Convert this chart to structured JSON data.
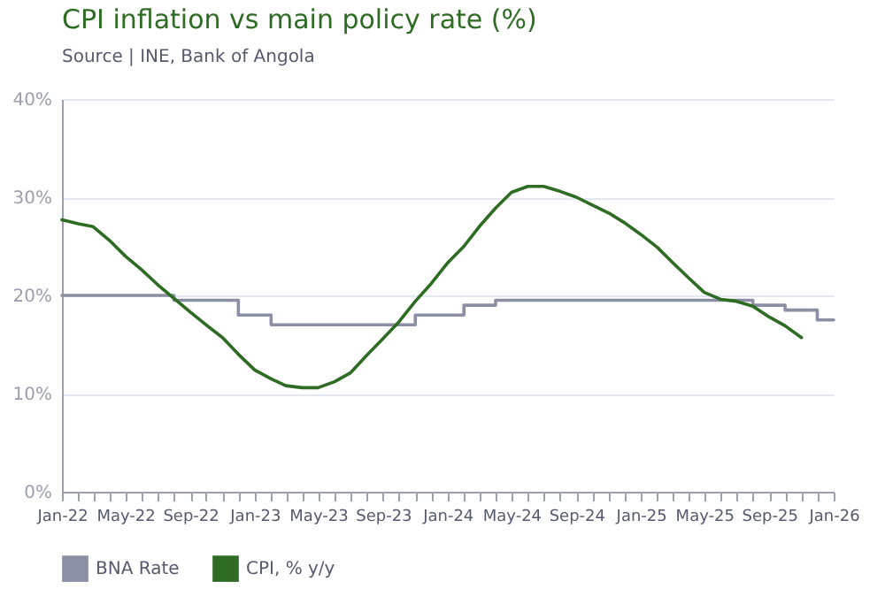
{
  "chart_data": {
    "type": "line",
    "title": "CPI inflation vs main policy rate (%)",
    "subtitle": "Source | INE, Bank of Angola",
    "xlim": [
      "2022-01",
      "2026-01"
    ],
    "xticks": [
      {
        "value": "2022-01",
        "label": "Jan-22"
      },
      {
        "value": "2022-02",
        "label": null
      },
      {
        "value": "2022-03",
        "label": null
      },
      {
        "value": "2022-04",
        "label": null
      },
      {
        "value": "2022-05",
        "label": "May-22"
      },
      {
        "value": "2022-06",
        "label": null
      },
      {
        "value": "2022-07",
        "label": null
      },
      {
        "value": "2022-08",
        "label": null
      },
      {
        "value": "2022-09",
        "label": "Sep-22"
      },
      {
        "value": "2022-10",
        "label": null
      },
      {
        "value": "2022-11",
        "label": null
      },
      {
        "value": "2022-12",
        "label": null
      },
      {
        "value": "2023-01",
        "label": "Jan-23"
      },
      {
        "value": "2023-02",
        "label": null
      },
      {
        "value": "2023-03",
        "label": null
      },
      {
        "value": "2023-04",
        "label": null
      },
      {
        "value": "2023-05",
        "label": "May-23"
      },
      {
        "value": "2023-06",
        "label": null
      },
      {
        "value": "2023-07",
        "label": null
      },
      {
        "value": "2023-08",
        "label": null
      },
      {
        "value": "2023-09",
        "label": "Sep-23"
      },
      {
        "value": "2023-10",
        "label": null
      },
      {
        "value": "2023-11",
        "label": null
      },
      {
        "value": "2023-12",
        "label": null
      },
      {
        "value": "2024-01",
        "label": "Jan-24"
      },
      {
        "value": "2024-02",
        "label": null
      },
      {
        "value": "2024-03",
        "label": null
      },
      {
        "value": "2024-04",
        "label": null
      },
      {
        "value": "2024-05",
        "label": "May-24"
      },
      {
        "value": "2024-06",
        "label": null
      },
      {
        "value": "2024-07",
        "label": null
      },
      {
        "value": "2024-08",
        "label": null
      },
      {
        "value": "2024-09",
        "label": "Sep-24"
      },
      {
        "value": "2024-10",
        "label": null
      },
      {
        "value": "2024-11",
        "label": null
      },
      {
        "value": "2024-12",
        "label": null
      },
      {
        "value": "2025-01",
        "label": "Jan-25"
      },
      {
        "value": "2025-02",
        "label": null
      },
      {
        "value": "2025-03",
        "label": null
      },
      {
        "value": "2025-04",
        "label": null
      },
      {
        "value": "2025-05",
        "label": "May-25"
      },
      {
        "value": "2025-06",
        "label": null
      },
      {
        "value": "2025-07",
        "label": null
      },
      {
        "value": "2025-08",
        "label": null
      },
      {
        "value": "2025-09",
        "label": "Sep-25"
      },
      {
        "value": "2025-10",
        "label": null
      },
      {
        "value": "2025-11",
        "label": null
      },
      {
        "value": "2025-12",
        "label": null
      },
      {
        "value": "2026-01",
        "label": "Jan-26"
      }
    ],
    "ylim": [
      0,
      40
    ],
    "yticks": [
      {
        "value": 0,
        "label": "0%"
      },
      {
        "value": 10,
        "label": "10%"
      },
      {
        "value": 20,
        "label": "20%"
      },
      {
        "value": 30,
        "label": "30%"
      },
      {
        "value": 40,
        "label": "40%"
      }
    ],
    "grid": "y",
    "legend": "bottom",
    "series": [
      {
        "name": "BNA Rate",
        "type": "step",
        "color": "#8a8fa3",
        "x": [
          "2022-01",
          "2022-08",
          "2022-12",
          "2023-02",
          "2023-11",
          "2024-02",
          "2024-04",
          "2025-08",
          "2025-10",
          "2025-12",
          "2026-01"
        ],
        "values": [
          20,
          19.5,
          18,
          17,
          18,
          19,
          19.5,
          19,
          18.5,
          17.5,
          17.5
        ]
      },
      {
        "name": "CPI, % y/y",
        "type": "line",
        "color": "#2e6b23",
        "x": [
          "2022-01",
          "2022-02",
          "2022-03",
          "2022-04",
          "2022-05",
          "2022-06",
          "2022-07",
          "2022-08",
          "2022-09",
          "2022-10",
          "2022-11",
          "2022-12",
          "2023-01",
          "2023-02",
          "2023-03",
          "2023-04",
          "2023-05",
          "2023-06",
          "2023-07",
          "2023-08",
          "2023-09",
          "2023-10",
          "2023-11",
          "2023-12",
          "2024-01",
          "2024-02",
          "2024-03",
          "2024-04",
          "2024-05",
          "2024-06",
          "2024-07",
          "2024-08",
          "2024-09",
          "2024-10",
          "2024-11",
          "2024-12",
          "2025-01",
          "2025-02",
          "2025-03",
          "2025-04",
          "2025-05",
          "2025-06",
          "2025-07",
          "2025-08",
          "2025-09",
          "2025-10",
          "2025-11"
        ],
        "values": [
          27.7,
          27.3,
          27.0,
          25.6,
          24.0,
          22.6,
          21.1,
          19.7,
          18.3,
          17.0,
          15.7,
          14.0,
          12.4,
          11.5,
          10.8,
          10.6,
          10.6,
          11.2,
          12.1,
          13.9,
          15.6,
          17.3,
          19.4,
          21.2,
          23.3,
          25.0,
          27.0,
          28.9,
          30.5,
          31.1,
          31.1,
          30.6,
          30.0,
          29.2,
          28.4,
          27.4,
          26.2,
          24.9,
          23.4,
          21.8,
          20.3,
          19.6,
          19.4,
          18.9,
          17.8,
          16.9,
          15.7
        ]
      }
    ]
  }
}
